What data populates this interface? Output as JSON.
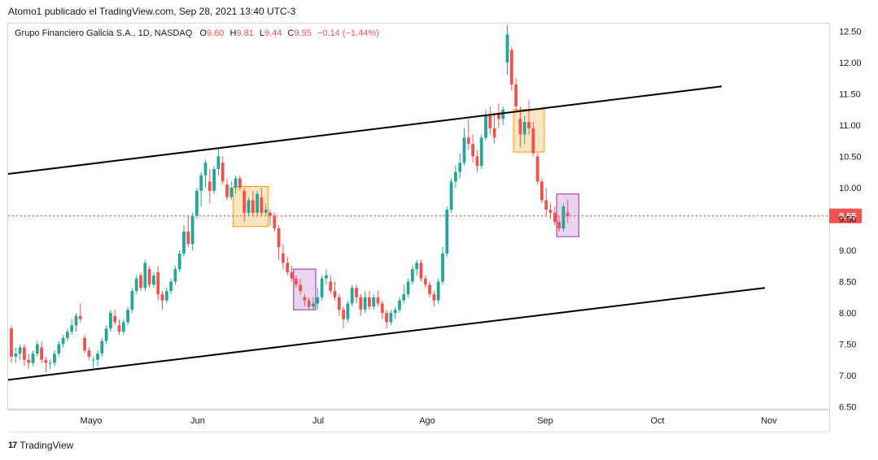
{
  "publish_line": "Atomo1 publicado el TradingView.com, Sep 28, 2021 13:40 UTC-3",
  "legend": {
    "symbol": "Grupo Financiero Galicia S.A., 1D, NASDAQ",
    "o_label": "O",
    "o_value": "9.60",
    "h_label": "H",
    "h_value": "9.81",
    "l_label": "L",
    "l_value": "9.44",
    "c_label": "C",
    "c_value": "9.55",
    "change": "−0.14 (−1.44%)"
  },
  "brand": {
    "logo": "17",
    "name": "TradingView"
  },
  "colors": {
    "up": "#26a69a",
    "down": "#ef5350",
    "price_line": "#ef5350",
    "orange_box": "#ff9800",
    "purple_box": "#9c27b0"
  },
  "chart_data": {
    "type": "candlestick",
    "symbol": "GGAL",
    "timeframe": "1D",
    "x_tick_labels": [
      "Mayo",
      "Jun",
      "Jul",
      "Ago",
      "Sep",
      "Oct",
      "Nov"
    ],
    "y_ticks": [
      "12.50",
      "12.00",
      "11.50",
      "11.00",
      "10.50",
      "10.00",
      "9.50",
      "9.00",
      "8.50",
      "8.00",
      "7.50",
      "7.00",
      "6.50"
    ],
    "ylim": [
      6.5,
      12.6
    ],
    "last_price_label": "9.55",
    "last_price": 9.55,
    "candles": [
      [
        7.75,
        7.8,
        7.2,
        7.3
      ],
      [
        7.3,
        7.45,
        7.2,
        7.35
      ],
      [
        7.35,
        7.5,
        7.25,
        7.45
      ],
      [
        7.45,
        7.5,
        7.15,
        7.25
      ],
      [
        7.25,
        7.35,
        7.1,
        7.2
      ],
      [
        7.2,
        7.4,
        7.15,
        7.35
      ],
      [
        7.35,
        7.55,
        7.3,
        7.5
      ],
      [
        7.45,
        7.55,
        7.2,
        7.25
      ],
      [
        7.25,
        7.3,
        7.05,
        7.2
      ],
      [
        7.2,
        7.25,
        7.1,
        7.2
      ],
      [
        7.2,
        7.4,
        7.15,
        7.35
      ],
      [
        7.35,
        7.55,
        7.3,
        7.5
      ],
      [
        7.5,
        7.65,
        7.45,
        7.6
      ],
      [
        7.6,
        7.75,
        7.55,
        7.7
      ],
      [
        7.7,
        7.9,
        7.65,
        7.8
      ],
      [
        7.8,
        8.0,
        7.7,
        7.95
      ],
      [
        7.95,
        8.15,
        7.85,
        7.9
      ],
      [
        7.6,
        7.65,
        7.35,
        7.4
      ],
      [
        7.4,
        7.45,
        7.25,
        7.3
      ],
      [
        7.25,
        7.3,
        7.1,
        7.25
      ],
      [
        7.25,
        7.4,
        7.15,
        7.35
      ],
      [
        7.35,
        7.6,
        7.3,
        7.55
      ],
      [
        7.55,
        7.8,
        7.5,
        7.75
      ],
      [
        7.75,
        8.05,
        7.7,
        8.0
      ],
      [
        7.95,
        8.05,
        7.8,
        7.85
      ],
      [
        7.8,
        7.9,
        7.65,
        7.7
      ],
      [
        7.7,
        7.9,
        7.65,
        7.85
      ],
      [
        7.85,
        8.1,
        7.8,
        8.05
      ],
      [
        8.05,
        8.4,
        8.0,
        8.35
      ],
      [
        8.35,
        8.6,
        8.3,
        8.55
      ],
      [
        8.6,
        8.65,
        8.35,
        8.4
      ],
      [
        8.4,
        8.85,
        8.35,
        8.8
      ],
      [
        8.7,
        8.75,
        8.4,
        8.45
      ],
      [
        8.45,
        8.65,
        8.4,
        8.6
      ],
      [
        8.65,
        8.75,
        8.2,
        8.3
      ],
      [
        8.3,
        8.35,
        8.05,
        8.2
      ],
      [
        8.2,
        8.4,
        8.15,
        8.35
      ],
      [
        8.35,
        8.55,
        8.3,
        8.5
      ],
      [
        8.5,
        8.75,
        8.45,
        8.7
      ],
      [
        8.7,
        9.0,
        8.65,
        8.95
      ],
      [
        8.95,
        9.4,
        8.9,
        9.3
      ],
      [
        9.3,
        9.55,
        9.05,
        9.1
      ],
      [
        9.1,
        9.6,
        9.0,
        9.55
      ],
      [
        9.55,
        10.0,
        9.5,
        9.95
      ],
      [
        9.95,
        10.25,
        9.7,
        10.2
      ],
      [
        10.2,
        10.45,
        10.0,
        10.4
      ],
      [
        10.1,
        10.3,
        9.75,
        9.95
      ],
      [
        9.95,
        10.35,
        9.9,
        10.3
      ],
      [
        10.3,
        10.65,
        10.2,
        10.5
      ],
      [
        10.4,
        10.5,
        10.05,
        10.1
      ],
      [
        10.05,
        10.15,
        9.8,
        9.85
      ],
      [
        9.85,
        10.1,
        9.8,
        10.0
      ],
      [
        10.0,
        10.2,
        9.9,
        10.15
      ],
      [
        10.15,
        10.2,
        9.95,
        10.0
      ],
      [
        9.95,
        10.0,
        9.45,
        9.6
      ],
      [
        9.6,
        9.85,
        9.55,
        9.8
      ],
      [
        9.8,
        9.95,
        9.55,
        9.6
      ],
      [
        9.6,
        9.95,
        9.55,
        9.9
      ],
      [
        9.85,
        10.0,
        9.55,
        9.6
      ],
      [
        9.6,
        9.75,
        9.55,
        9.65
      ],
      [
        9.6,
        9.65,
        9.4,
        9.55
      ],
      [
        9.55,
        9.6,
        9.3,
        9.35
      ],
      [
        9.35,
        9.4,
        8.85,
        9.05
      ],
      [
        8.95,
        9.1,
        8.7,
        8.8
      ],
      [
        8.8,
        8.9,
        8.6,
        8.65
      ],
      [
        8.65,
        8.75,
        8.5,
        8.55
      ],
      [
        8.55,
        8.6,
        8.4,
        8.45
      ],
      [
        8.45,
        8.55,
        8.3,
        8.35
      ],
      [
        8.25,
        8.3,
        8.1,
        8.2
      ],
      [
        8.2,
        8.25,
        8.05,
        8.1
      ],
      [
        8.1,
        8.25,
        8.05,
        8.15
      ],
      [
        8.15,
        8.4,
        8.05,
        8.25
      ],
      [
        8.25,
        8.6,
        8.2,
        8.55
      ],
      [
        8.55,
        8.7,
        8.45,
        8.6
      ],
      [
        8.5,
        8.6,
        8.3,
        8.35
      ],
      [
        8.35,
        8.5,
        8.2,
        8.25
      ],
      [
        8.25,
        8.3,
        7.95,
        8.05
      ],
      [
        8.05,
        8.1,
        7.75,
        7.9
      ],
      [
        7.9,
        8.2,
        7.85,
        8.15
      ],
      [
        8.15,
        8.45,
        8.1,
        8.4
      ],
      [
        8.4,
        8.45,
        8.15,
        8.25
      ],
      [
        8.25,
        8.3,
        7.95,
        8.05
      ],
      [
        8.05,
        8.35,
        8.0,
        8.25
      ],
      [
        8.25,
        8.35,
        8.05,
        8.1
      ],
      [
        8.1,
        8.3,
        8.05,
        8.25
      ],
      [
        8.25,
        8.35,
        8.1,
        8.15
      ],
      [
        8.15,
        8.2,
        7.9,
        8.0
      ],
      [
        8.0,
        8.05,
        7.75,
        7.85
      ],
      [
        7.85,
        8.05,
        7.8,
        8.0
      ],
      [
        8.0,
        8.1,
        7.9,
        8.05
      ],
      [
        8.05,
        8.25,
        8.0,
        8.2
      ],
      [
        8.2,
        8.45,
        8.15,
        8.3
      ],
      [
        8.3,
        8.55,
        8.25,
        8.5
      ],
      [
        8.5,
        8.75,
        8.45,
        8.7
      ],
      [
        8.7,
        8.85,
        8.6,
        8.8
      ],
      [
        8.8,
        8.85,
        8.5,
        8.55
      ],
      [
        8.55,
        8.6,
        8.4,
        8.45
      ],
      [
        8.45,
        8.5,
        8.25,
        8.3
      ],
      [
        8.3,
        8.35,
        8.1,
        8.2
      ],
      [
        8.2,
        8.55,
        8.15,
        8.5
      ],
      [
        8.5,
        9.05,
        8.45,
        8.95
      ],
      [
        8.95,
        9.7,
        8.9,
        9.65
      ],
      [
        9.65,
        10.15,
        9.6,
        10.1
      ],
      [
        10.1,
        10.35,
        10.0,
        10.25
      ],
      [
        10.25,
        10.55,
        10.15,
        10.4
      ],
      [
        10.4,
        10.95,
        10.35,
        10.8
      ],
      [
        10.8,
        11.1,
        10.6,
        10.7
      ],
      [
        10.7,
        10.85,
        10.4,
        10.5
      ],
      [
        10.5,
        10.6,
        10.25,
        10.35
      ],
      [
        10.35,
        10.85,
        10.3,
        10.8
      ],
      [
        10.8,
        11.25,
        10.75,
        11.15
      ],
      [
        11.15,
        11.3,
        10.85,
        10.95
      ],
      [
        10.95,
        11.2,
        10.7,
        10.8
      ],
      [
        11.2,
        11.35,
        10.95,
        11.1
      ],
      [
        11.1,
        11.3,
        11.0,
        11.25
      ],
      [
        12.0,
        12.6,
        11.8,
        12.45
      ],
      [
        12.2,
        12.25,
        11.55,
        11.65
      ],
      [
        11.65,
        11.75,
        11.2,
        11.3
      ],
      [
        11.1,
        11.3,
        10.65,
        10.85
      ],
      [
        10.85,
        11.15,
        10.7,
        11.05
      ],
      [
        11.05,
        11.4,
        10.85,
        10.95
      ],
      [
        10.95,
        11.05,
        10.5,
        10.55
      ],
      [
        10.5,
        10.55,
        10.05,
        10.1
      ],
      [
        10.1,
        10.15,
        9.75,
        9.8
      ],
      [
        9.8,
        10.0,
        9.55,
        9.65
      ],
      [
        9.65,
        9.75,
        9.5,
        9.6
      ],
      [
        9.6,
        9.7,
        9.4,
        9.45
      ],
      [
        9.45,
        9.55,
        9.3,
        9.35
      ],
      [
        9.35,
        9.75,
        9.3,
        9.7
      ],
      [
        9.6,
        9.81,
        9.44,
        9.55
      ]
    ],
    "trendlines": [
      {
        "name": "upper-channel",
        "x1_bar": 0,
        "y1": 10.22,
        "x2_bar": 160,
        "y2": 11.62
      },
      {
        "name": "lower-channel",
        "x1_bar": 0,
        "y1": 6.93,
        "x2_bar": 170,
        "y2": 8.4
      }
    ],
    "highlight_boxes": [
      {
        "kind": "orange",
        "bar_start": 52,
        "bar_end": 59,
        "y_low": 9.38,
        "y_high": 10.02
      },
      {
        "kind": "purple",
        "bar_start": 66,
        "bar_end": 70,
        "y_low": 8.05,
        "y_high": 8.7
      },
      {
        "kind": "orange",
        "bar_start": 117,
        "bar_end": 123,
        "y_low": 10.57,
        "y_high": 11.25
      },
      {
        "kind": "purple",
        "bar_start": 127,
        "bar_end": 131,
        "y_low": 9.22,
        "y_high": 9.9
      }
    ]
  }
}
